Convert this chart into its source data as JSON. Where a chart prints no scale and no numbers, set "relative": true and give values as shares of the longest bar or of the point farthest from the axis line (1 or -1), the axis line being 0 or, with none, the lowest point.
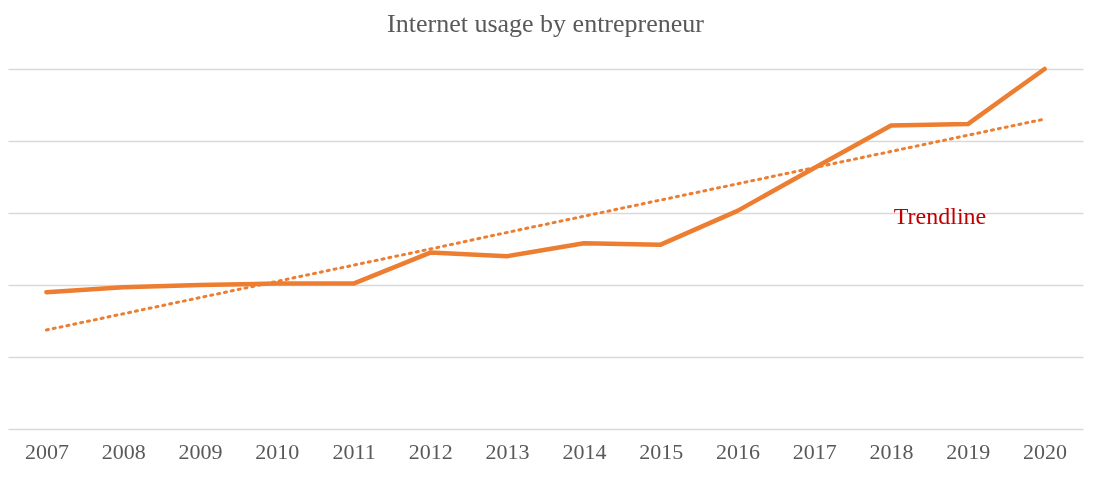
{
  "chart_data": {
    "type": "line",
    "title": "Internet usage by entrepreneur",
    "categories": [
      "2007",
      "2008",
      "2009",
      "2010",
      "2011",
      "2012",
      "2013",
      "2014",
      "2015",
      "2016",
      "2017",
      "2018",
      "2019",
      "2020"
    ],
    "relative": true,
    "grid": "y",
    "series": [
      {
        "color": "#ed7d31",
        "values": [
          0.38,
          0.394,
          0.4,
          0.404,
          0.404,
          0.49,
          0.48,
          0.516,
          0.512,
          0.606,
          0.725,
          0.843,
          0.847,
          1
        ]
      },
      {
        "type": "line",
        "color": "#ed7d31",
        "line_style": "dotted",
        "values": [
          0.275,
          0.32,
          0.365,
          0.41,
          0.455,
          0.5,
          0.546,
          0.591,
          0.636,
          0.681,
          0.726,
          0.771,
          0.816,
          0.861
        ]
      }
    ],
    "annotations": [
      "Trendline"
    ]
  }
}
